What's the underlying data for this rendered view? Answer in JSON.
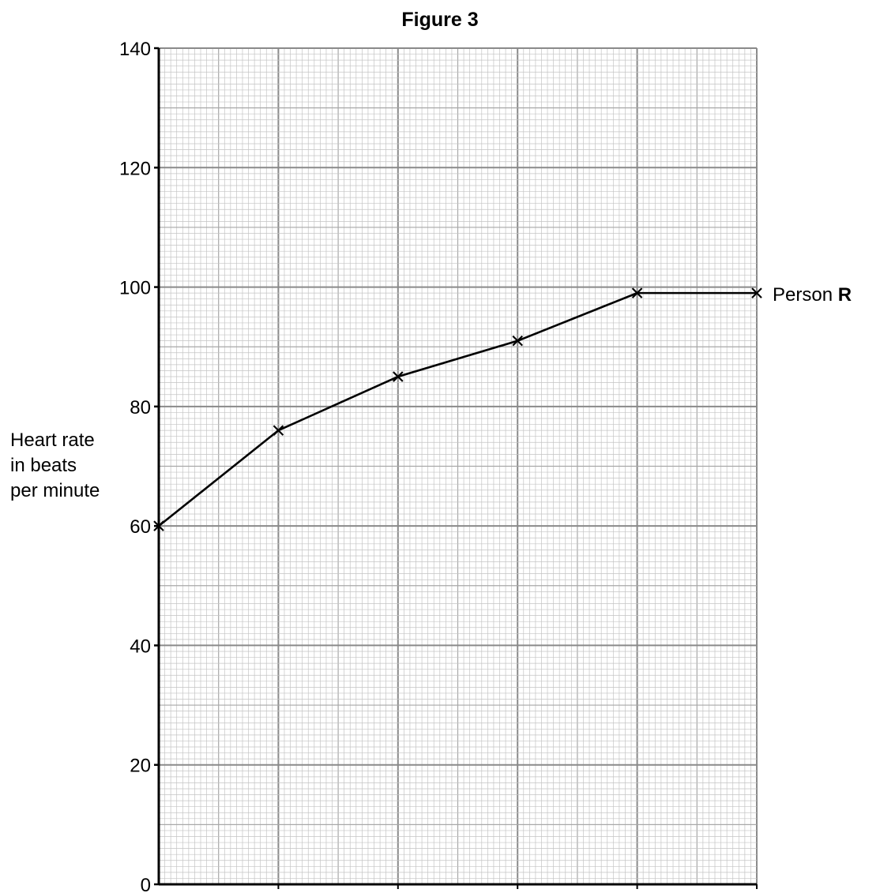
{
  "chart_data": {
    "type": "line",
    "title": "Figure 3",
    "ylabel_lines": [
      "Heart rate",
      "in beats",
      "per minute"
    ],
    "xlabel": "",
    "ylim": [
      0,
      140
    ],
    "y_ticks": [
      "0",
      "20",
      "40",
      "60",
      "80",
      "100",
      "120",
      "140"
    ],
    "x_major_divisions": 5,
    "grid": true,
    "series": [
      {
        "name_prefix": "Person ",
        "name_bold": "R",
        "points_index": [
          0,
          1,
          2,
          3,
          4,
          5
        ],
        "values": [
          60,
          76,
          85,
          91,
          99,
          99
        ],
        "marker": "cross"
      }
    ]
  }
}
